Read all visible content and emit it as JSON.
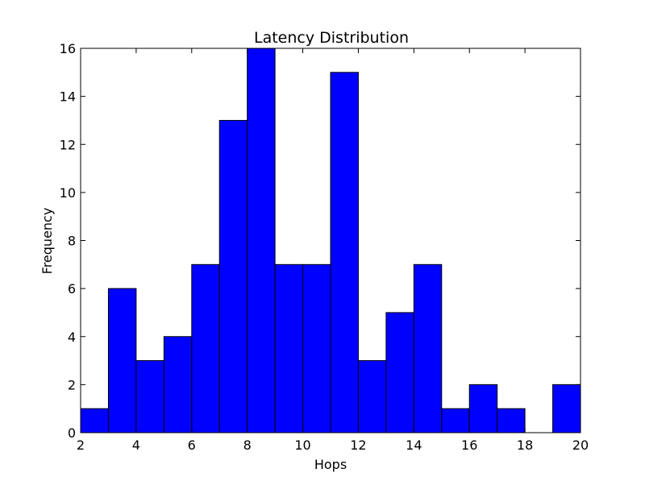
{
  "chart_data": {
    "type": "bar",
    "subtype": "histogram",
    "title": "Latency Distribution",
    "xlabel": "Hops",
    "ylabel": "Frequency",
    "xlim": [
      2,
      20
    ],
    "ylim": [
      0,
      16
    ],
    "xticks": [
      2,
      4,
      6,
      8,
      10,
      12,
      14,
      16,
      18,
      20
    ],
    "yticks": [
      0,
      2,
      4,
      6,
      8,
      10,
      12,
      14,
      16
    ],
    "bin_edges": [
      2,
      3,
      4,
      5,
      6,
      7,
      8,
      9,
      10,
      11,
      12,
      13,
      14,
      15,
      16,
      17,
      18,
      19,
      20
    ],
    "values": [
      1,
      6,
      3,
      4,
      7,
      13,
      16,
      7,
      7,
      15,
      3,
      5,
      7,
      1,
      2,
      1,
      0,
      2
    ],
    "bar_color": "#0000ff",
    "grid": false,
    "legend": "none"
  }
}
